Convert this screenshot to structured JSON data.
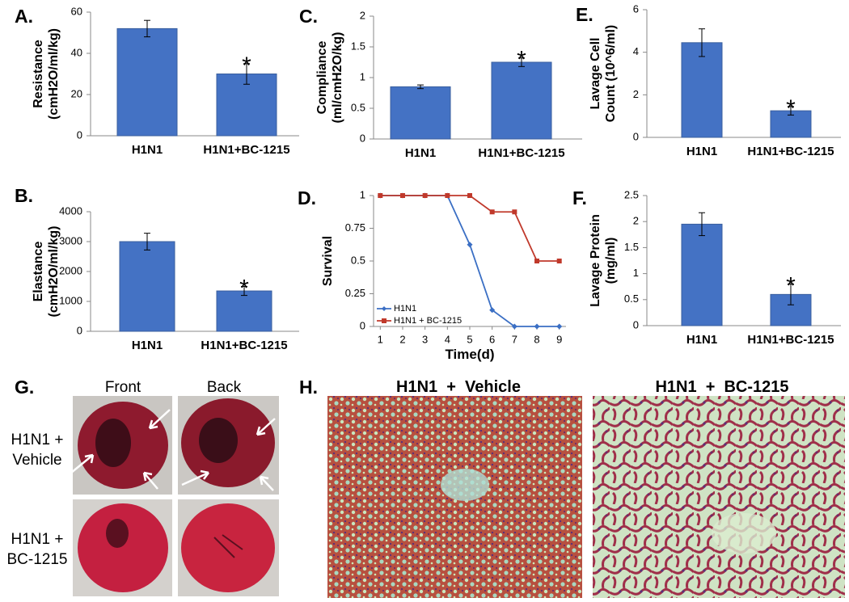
{
  "chart_data": [
    {
      "type": "bar",
      "label": "A.",
      "ylabel": [
        "Resistance",
        "(cmH2O/ml/kg)"
      ],
      "categories": [
        "H1N1",
        "H1N1+BC-1215"
      ],
      "values": [
        52,
        30
      ],
      "errors": [
        4,
        5
      ],
      "significance": [
        null,
        "*"
      ],
      "color": "#4472c4",
      "ylim": [
        0,
        60
      ],
      "yticks": [
        0,
        20,
        40,
        60
      ]
    },
    {
      "type": "bar",
      "label": "C.",
      "ylabel": [
        "Compliance",
        "(ml/cmH2O/kg)"
      ],
      "categories": [
        "H1N1",
        "H1N1+BC-1215"
      ],
      "values": [
        0.85,
        1.25
      ],
      "errors": [
        0.03,
        0.07
      ],
      "significance": [
        null,
        "*"
      ],
      "color": "#4472c4",
      "ylim": [
        0,
        2
      ],
      "yticks": [
        0,
        0.5,
        1,
        1.5,
        2
      ]
    },
    {
      "type": "bar",
      "label": "E.",
      "ylabel": [
        "Lavage Cell",
        "Count (10^6/ml)"
      ],
      "categories": [
        "H1N1",
        "H1N1+BC-1215"
      ],
      "values": [
        4.45,
        1.25
      ],
      "errors": [
        0.65,
        0.2
      ],
      "significance": [
        null,
        "*"
      ],
      "color": "#4472c4",
      "ylim": [
        0,
        6
      ],
      "yticks": [
        0,
        2,
        4,
        6
      ]
    },
    {
      "type": "bar",
      "label": "B.",
      "ylabel": [
        "Elastance",
        "(cmH2O/ml/kg)"
      ],
      "categories": [
        "H1N1",
        "H1N1+BC-1215"
      ],
      "values": [
        3000,
        1350
      ],
      "errors": [
        280,
        150
      ],
      "significance": [
        null,
        "*"
      ],
      "color": "#4472c4",
      "ylim": [
        0,
        4000
      ],
      "yticks": [
        0,
        1000,
        2000,
        3000,
        4000
      ]
    },
    {
      "type": "line",
      "label": "D.",
      "ylabel": [
        "Survival"
      ],
      "xlabel": "Time(d)",
      "x": [
        1,
        2,
        3,
        4,
        5,
        6,
        7,
        8,
        9
      ],
      "series": [
        {
          "name": "H1N1",
          "color": "#3b6fc4",
          "marker": "diamond",
          "values": [
            1,
            1,
            1,
            1,
            0.625,
            0.125,
            0,
            0,
            0
          ]
        },
        {
          "name": "H1N1 + BC-1215",
          "color": "#c0392b",
          "marker": "square",
          "values": [
            1,
            1,
            1,
            1,
            1,
            0.875,
            0.875,
            0.5,
            0.5
          ]
        }
      ],
      "xlim": [
        0.7,
        9.3
      ],
      "xticks": [
        1,
        2,
        3,
        4,
        5,
        6,
        7,
        8,
        9
      ],
      "ylim": [
        0,
        1
      ],
      "yticks": [
        0,
        0.25,
        0.5,
        0.75,
        1
      ],
      "legend": "lower left"
    },
    {
      "type": "bar",
      "label": "F.",
      "ylabel": [
        "Lavage Protein",
        "(mg/ml)"
      ],
      "categories": [
        "H1N1",
        "H1N1+BC-1215"
      ],
      "values": [
        1.95,
        0.6
      ],
      "errors": [
        0.22,
        0.2
      ],
      "significance": [
        null,
        "*"
      ],
      "color": "#4472c4",
      "ylim": [
        0,
        2.5
      ],
      "yticks": [
        0,
        0.5,
        1,
        1.5,
        2,
        2.5
      ]
    }
  ],
  "panels": {
    "G": {
      "label": "G.",
      "columns": [
        "Front",
        "Back"
      ],
      "rows": [
        [
          "H1N1 +",
          "Vehicle"
        ],
        [
          "H1N1 +",
          "BC-1215"
        ]
      ]
    },
    "H": {
      "label": "H.",
      "titles": [
        "H1N1  +  Vehicle",
        "H1N1  +  BC-1215"
      ]
    }
  }
}
